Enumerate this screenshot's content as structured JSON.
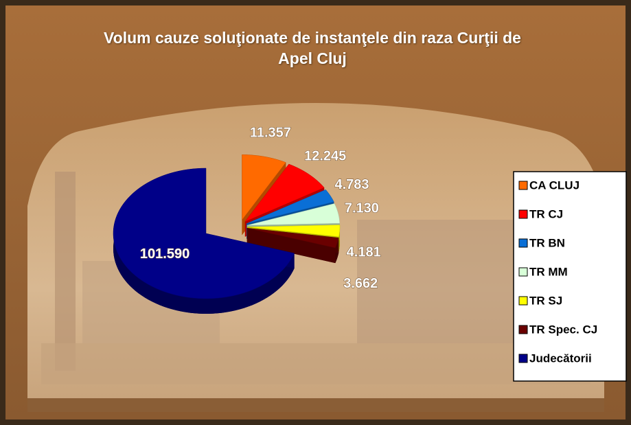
{
  "chart_data": {
    "type": "pie",
    "title": "Volum cauze soluţionate de instanţele din raza Curţii de Apel Cluj",
    "categories": [
      "CA CLUJ",
      "TR CJ",
      "TR BN",
      "TR MM",
      "TR SJ",
      "TR Spec. CJ",
      "Judecătorii"
    ],
    "values": [
      11357,
      12245,
      4783,
      7130,
      4181,
      3662,
      101590
    ],
    "value_labels": [
      "11.357",
      "12.245",
      "4.783",
      "7.130",
      "4.181",
      "3.662",
      "101.590"
    ],
    "colors": [
      "#ff6a00",
      "#ff0000",
      "#0a6fd6",
      "#d8ffd8",
      "#ffff00",
      "#6a0000",
      "#000088"
    ],
    "legend": "right"
  }
}
